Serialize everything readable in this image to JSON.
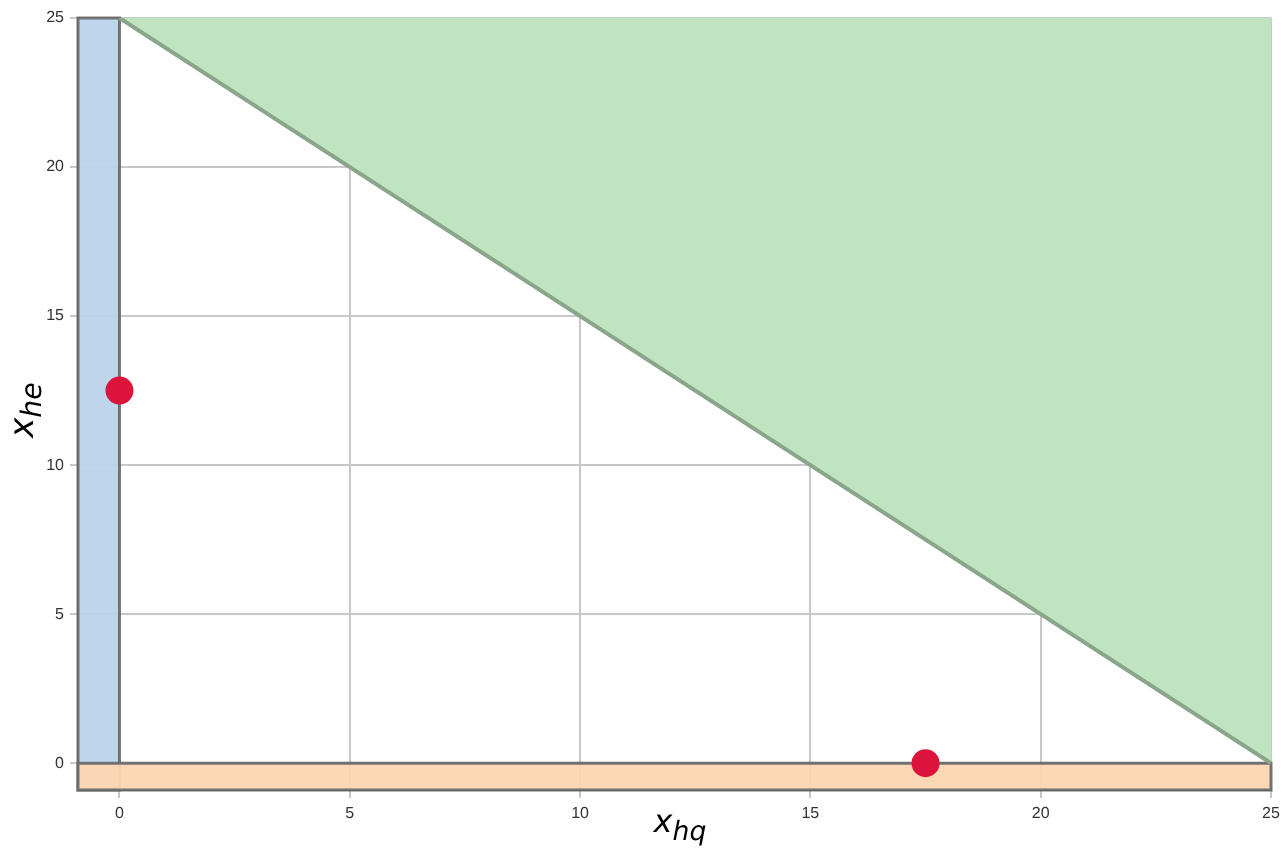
{
  "chart_data": {
    "type": "scatter",
    "xlabel": "x$_{hq}$",
    "ylabel": "x$_{he}$",
    "xlim": [
      -0.9,
      25
    ],
    "ylim": [
      -0.9,
      25
    ],
    "xticks": [
      0,
      5,
      10,
      15,
      20,
      25
    ],
    "yticks": [
      0,
      5,
      10,
      15,
      20,
      25
    ],
    "grid": true,
    "bands": [
      {
        "axis": "x",
        "from": -0.9,
        "to": 0,
        "color": "#b9d4ea"
      },
      {
        "axis": "y",
        "from": -0.9,
        "to": 0,
        "color": "#fdd6b1"
      }
    ],
    "series": [
      {
        "type": "area",
        "x": [
          0,
          25
        ],
        "values": [
          25,
          0
        ],
        "color": "#c0e3c0",
        "marker": "none"
      },
      {
        "x": [
          0,
          17.5
        ],
        "values": [
          12.5,
          0
        ],
        "color": "#dc143c",
        "marker": "circle"
      }
    ]
  }
}
